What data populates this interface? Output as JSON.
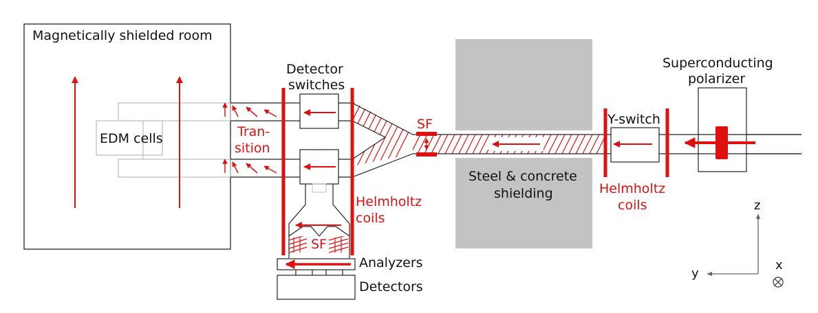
{
  "labels": {
    "msr": "Magnetically shielded room",
    "edm": "EDM cells",
    "detector_switches_1": "Detector",
    "detector_switches_2": "switches",
    "transition_1": "Tran-",
    "transition_2": "sition",
    "helmholtz_left_1": "Helmholtz",
    "helmholtz_left_2": "coils",
    "sf_main": "SF",
    "sf_analyzer": "SF",
    "analyzers": "Analyzers",
    "detectors": "Detectors",
    "shielding_1": "Steel & concrete",
    "shielding_2": "shielding",
    "yswitch": "Y-switch",
    "helmholtz_right_1": "Helmholtz",
    "helmholtz_right_2": "coils",
    "polarizer_1": "Superconducting",
    "polarizer_2": "polarizer",
    "axis_z": "z",
    "axis_y": "y",
    "axis_x": "x"
  },
  "colors": {
    "accent": "#e01010",
    "shielding": "#c3c3c3",
    "outline": "#222222",
    "light_outline": "#bbbbbb",
    "axis": "#666666"
  }
}
